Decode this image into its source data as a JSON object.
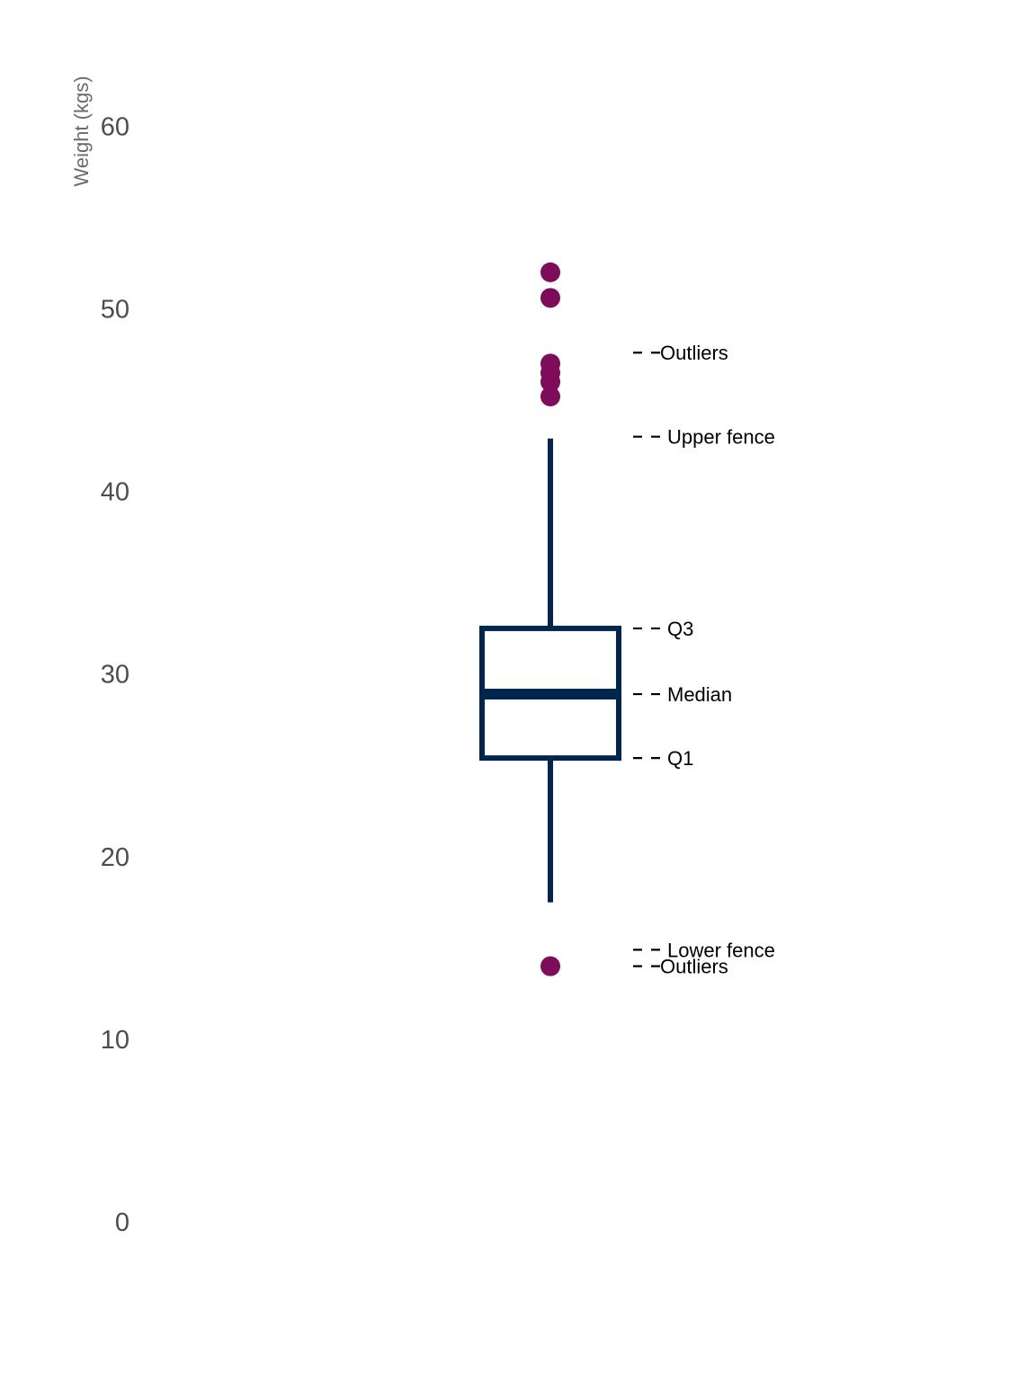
{
  "chart_data": {
    "type": "box",
    "title": "",
    "xlabel": "",
    "ylabel": "Weight (kgs)",
    "ylim": [
      -4,
      64
    ],
    "y_ticks": [
      0,
      10,
      20,
      30,
      40,
      50,
      60
    ],
    "grid": false,
    "legend": "none",
    "box": {
      "q1": 25.4,
      "median": 28.9,
      "q3": 32.5,
      "whisker_low": 17.5,
      "whisker_high": 42.9
    },
    "outliers": [
      52.0,
      50.6,
      47.0,
      46.5,
      46.0,
      45.2,
      14.0
    ],
    "annotations": [
      {
        "label": "Outliers",
        "value": 47.6
      },
      {
        "label": "Upper fence",
        "value": 43.0
      },
      {
        "label": "Q3",
        "value": 32.5
      },
      {
        "label": "Median",
        "value": 28.9
      },
      {
        "label": "Q1",
        "value": 25.4
      },
      {
        "label": "Lower fence",
        "value": 14.9
      },
      {
        "label": "Outliers",
        "value": 14.0
      }
    ],
    "colors": {
      "box": "#00264d",
      "outliers": "#7e0c5a",
      "tick_text": "#4d4d4d",
      "axis_title": "#6b6b6b",
      "annotation": "#000000"
    }
  }
}
